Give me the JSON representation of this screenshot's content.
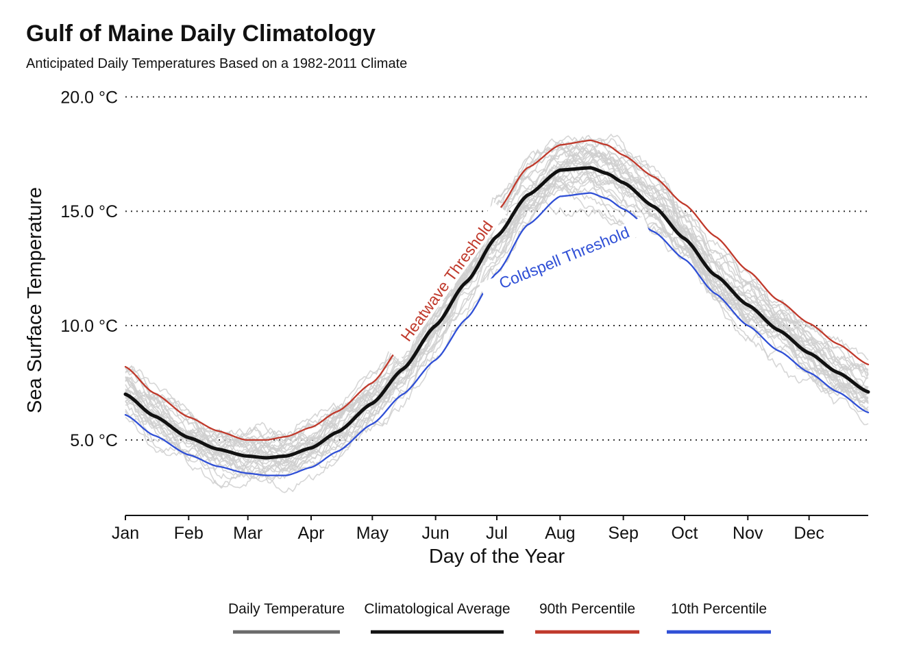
{
  "chart_data": {
    "type": "line",
    "title": "Gulf of Maine Daily Climatology",
    "subtitle": "Anticipated Daily Temperatures Based on a 1982-2011 Climate",
    "xlabel": "Day of the Year",
    "ylabel": "Sea Surface Temperature",
    "xlim": [
      1,
      365
    ],
    "ylim": [
      1.7,
      20.4
    ],
    "x_ticks": [
      {
        "day": 1,
        "label": "Jan"
      },
      {
        "day": 32,
        "label": "Feb"
      },
      {
        "day": 61,
        "label": "Mar"
      },
      {
        "day": 92,
        "label": "Apr"
      },
      {
        "day": 122,
        "label": "May"
      },
      {
        "day": 153,
        "label": "Jun"
      },
      {
        "day": 183,
        "label": "Jul"
      },
      {
        "day": 214,
        "label": "Aug"
      },
      {
        "day": 245,
        "label": "Sep"
      },
      {
        "day": 275,
        "label": "Oct"
      },
      {
        "day": 306,
        "label": "Nov"
      },
      {
        "day": 336,
        "label": "Dec"
      }
    ],
    "y_ticks": [
      {
        "value": 5,
        "label": "5.0 °C"
      },
      {
        "value": 10,
        "label": "10.0 °C"
      },
      {
        "value": 15,
        "label": "15.0 °C"
      },
      {
        "value": 20,
        "label": "20.0 °C"
      }
    ],
    "grid": "horizontal dotted",
    "legend_position": "bottom",
    "series": [
      {
        "name": "Climatological Average",
        "color": "#111111",
        "x": [
          1,
          15,
          32,
          46,
          60,
          70,
          80,
          92,
          105,
          122,
          137,
          153,
          168,
          183,
          198,
          214,
          229,
          237,
          245,
          260,
          275,
          290,
          306,
          321,
          336,
          350,
          365
        ],
        "y": [
          7.0,
          6.05,
          5.1,
          4.6,
          4.3,
          4.22,
          4.3,
          4.65,
          5.35,
          6.6,
          8.1,
          10.0,
          11.9,
          13.9,
          15.7,
          16.8,
          16.9,
          16.65,
          16.25,
          15.2,
          13.8,
          12.2,
          10.9,
          9.8,
          8.8,
          7.95,
          7.1
        ]
      },
      {
        "name": "90th Percentile",
        "color": "#c0392b",
        "x": [
          1,
          15,
          32,
          46,
          60,
          70,
          80,
          92,
          105,
          122,
          137,
          153,
          168,
          183,
          198,
          214,
          229,
          237,
          245,
          260,
          275,
          290,
          306,
          321,
          336,
          350,
          365
        ],
        "y": [
          8.2,
          7.05,
          6.0,
          5.4,
          5.0,
          5.0,
          5.15,
          5.55,
          6.25,
          7.5,
          9.2,
          11.3,
          13.2,
          15.0,
          16.9,
          17.9,
          18.1,
          17.9,
          17.45,
          16.5,
          15.3,
          13.9,
          12.4,
          11.1,
          10.1,
          9.2,
          8.3
        ]
      },
      {
        "name": "10th Percentile",
        "color": "#2f4fd6",
        "x": [
          1,
          15,
          32,
          46,
          60,
          70,
          80,
          92,
          105,
          122,
          137,
          153,
          168,
          183,
          198,
          214,
          229,
          237,
          245,
          260,
          275,
          290,
          306,
          321,
          336,
          350,
          365
        ],
        "y": [
          6.1,
          5.2,
          4.35,
          3.85,
          3.55,
          3.45,
          3.45,
          3.8,
          4.5,
          5.7,
          7.0,
          8.5,
          10.3,
          12.3,
          14.4,
          15.65,
          15.8,
          15.55,
          15.1,
          14.1,
          12.9,
          11.4,
          10.0,
          8.9,
          7.95,
          7.1,
          6.2
        ]
      }
    ],
    "background_series": {
      "name": "Daily Temperature",
      "color": "#cfcfcf",
      "count": 30,
      "description_key": "one faint gray line per year, 1982-2011"
    },
    "annotations": [
      {
        "text": "Heatwave Threshold",
        "series": "90th Percentile",
        "color": "#c0392b"
      },
      {
        "text": "Coldspell Threshold",
        "series": "10th Percentile",
        "color": "#2f4fd6"
      }
    ],
    "legend": [
      {
        "label": "Daily Temperature",
        "color": "#6b6b6b"
      },
      {
        "label": "Climatological Average",
        "color": "#111111"
      },
      {
        "label": "90th Percentile",
        "color": "#c0392b"
      },
      {
        "label": "10th Percentile",
        "color": "#2f4fd6"
      }
    ]
  }
}
